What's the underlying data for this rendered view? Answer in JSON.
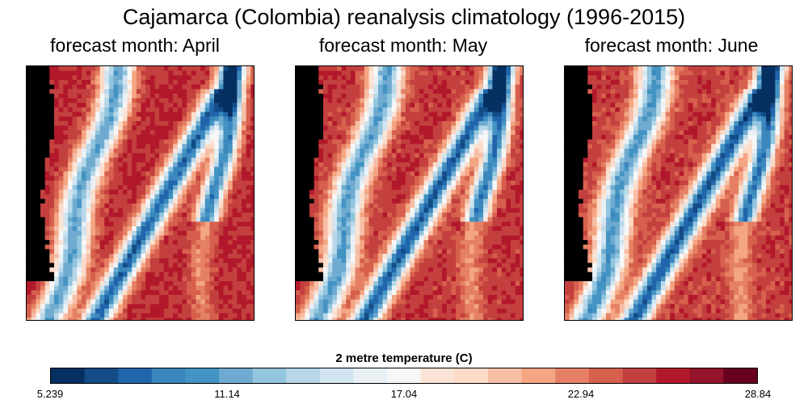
{
  "title": "Cajamarca (Colombia) reanalysis climatology (1996-2015)",
  "panels": [
    {
      "subtitle": "forecast month: April",
      "month": "April"
    },
    {
      "subtitle": "forecast month: May",
      "month": "May"
    },
    {
      "subtitle": "forecast month: June",
      "month": "June"
    }
  ],
  "colorbar": {
    "title": "2 metre temperature (C)",
    "ticks": [
      "5.239",
      "11.14",
      "17.04",
      "22.94",
      "28.84"
    ],
    "min": 5.239,
    "max": 28.84,
    "colors": [
      "#053061",
      "#134c87",
      "#2166ac",
      "#3a87bd",
      "#4393c3",
      "#6fabd0",
      "#92c5de",
      "#b8d8e9",
      "#d1e5f0",
      "#e9f1f6",
      "#f7f7f7",
      "#fbe3d6",
      "#fddbc7",
      "#f7bea6",
      "#f4a582",
      "#e58064",
      "#d6604d",
      "#c3403e",
      "#b2182b",
      "#93132a",
      "#67001f"
    ]
  },
  "map_colors": {
    "land_mask": "#000000"
  }
}
